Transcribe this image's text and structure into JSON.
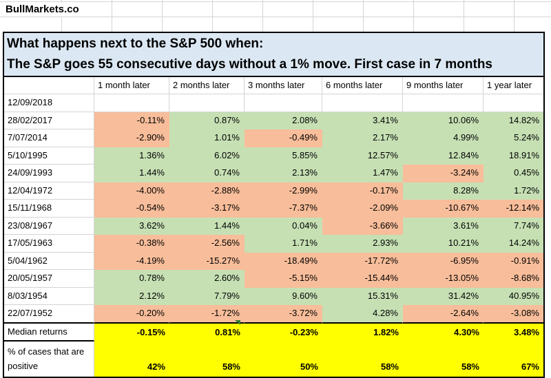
{
  "brand": "BullMarkets.co",
  "title": {
    "line1": "What happens next to the S&P 500 when:",
    "line2": "The S&P goes 55 consecutive days without a 1% move. First case in 7 months"
  },
  "table": {
    "column_headers": [
      "1 month later",
      "2 months later",
      "3 months later",
      "6 months later",
      "9 months later",
      "1 year later"
    ],
    "rows": [
      {
        "date": "12/09/2018",
        "values": [
          "",
          "",
          "",
          "",
          "",
          ""
        ]
      },
      {
        "date": "28/02/2017",
        "values": [
          "-0.11%",
          "0.87%",
          "2.08%",
          "3.41%",
          "10.06%",
          "14.82%"
        ]
      },
      {
        "date": "7/07/2014",
        "values": [
          "-2.90%",
          "1.01%",
          "-0.49%",
          "2.17%",
          "4.99%",
          "5.24%"
        ]
      },
      {
        "date": "5/10/1995",
        "values": [
          "1.36%",
          "6.02%",
          "5.85%",
          "12.57%",
          "12.84%",
          "18.91%"
        ]
      },
      {
        "date": "24/09/1993",
        "values": [
          "1.44%",
          "0.74%",
          "2.13%",
          "1.47%",
          "-3.24%",
          "0.45%"
        ]
      },
      {
        "date": "12/04/1972",
        "values": [
          "-4.00%",
          "-2.88%",
          "-2.99%",
          "-0.17%",
          "8.28%",
          "1.72%"
        ]
      },
      {
        "date": "15/11/1968",
        "values": [
          "-0.54%",
          "-3.17%",
          "-7.37%",
          "-2.09%",
          "-10.67%",
          "-12.14%"
        ]
      },
      {
        "date": "23/08/1967",
        "values": [
          "3.62%",
          "1.44%",
          "0.04%",
          "-3.66%",
          "3.61%",
          "7.74%"
        ]
      },
      {
        "date": "17/05/1963",
        "values": [
          "-0.38%",
          "-2.56%",
          "1.71%",
          "2.93%",
          "10.21%",
          "14.24%"
        ]
      },
      {
        "date": "5/04/1962",
        "values": [
          "-4.19%",
          "-15.27%",
          "-18.49%",
          "-17.72%",
          "-6.95%",
          "-0.91%"
        ]
      },
      {
        "date": "20/05/1957",
        "values": [
          "0.78%",
          "2.60%",
          "-5.15%",
          "-15.44%",
          "-13.05%",
          "-8.68%"
        ]
      },
      {
        "date": "8/03/1954",
        "values": [
          "2.12%",
          "7.79%",
          "9.60%",
          "15.31%",
          "31.42%",
          "40.95%"
        ]
      },
      {
        "date": "22/07/1952",
        "values": [
          "-0.20%",
          "-1.72%",
          "-3.72%",
          "4.28%",
          "-2.64%",
          "-3.08%"
        ]
      }
    ],
    "summary": {
      "median_label": "Median returns",
      "median_values": [
        "-0.15%",
        "0.81%",
        "-0.23%",
        "1.82%",
        "4.30%",
        "3.48%"
      ],
      "positive_label": "% of cases that are positive",
      "positive_values": [
        "42%",
        "58%",
        "50%",
        "58%",
        "58%",
        "67%"
      ]
    }
  },
  "colors": {
    "positive_fill": "#c6e0b4",
    "negative_fill": "#f8bd9a",
    "summary_fill": "#ffff00",
    "title_background": "#dbe8f4",
    "flag_green": "#2e7d32"
  }
}
